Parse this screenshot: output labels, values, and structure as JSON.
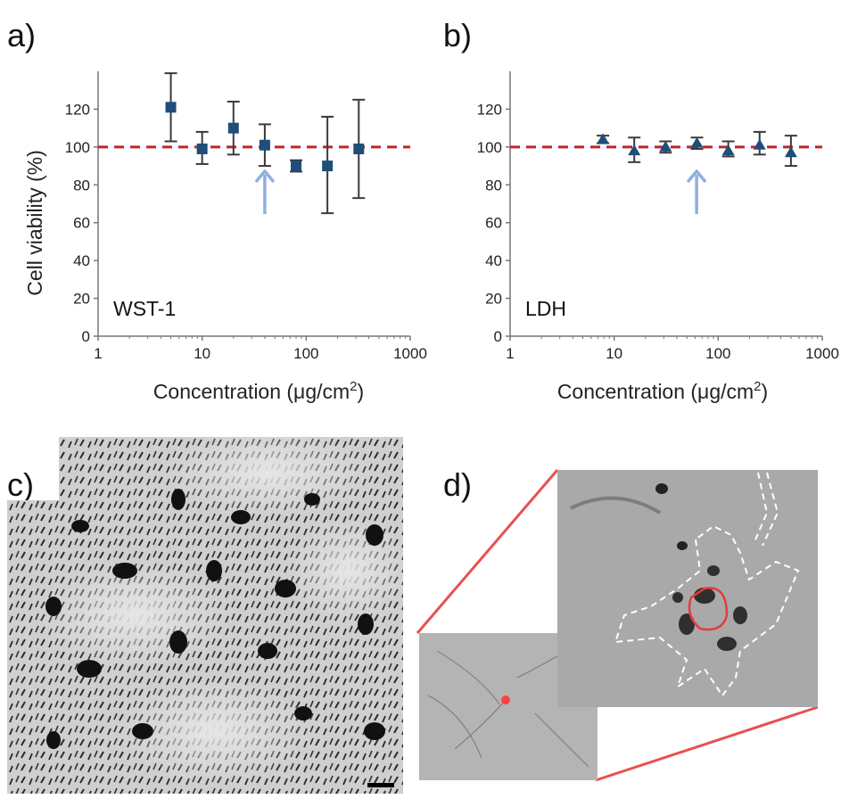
{
  "panels": {
    "a": {
      "label": "a)"
    },
    "b": {
      "label": "b)"
    },
    "c": {
      "label": "c)"
    },
    "d": {
      "label": "d)"
    }
  },
  "colors": {
    "reference_line": "#c0242c",
    "marker": "#1f4e79",
    "error_bar": "#3a3a3a",
    "arrow": "#8fb0e0",
    "zoom_lines": "#e85050",
    "nucleus_outline": "#e83a3a",
    "cell_outline": "#ffffff"
  },
  "chart_data": [
    {
      "type": "scatter",
      "panel": "a",
      "annotation": "WST-1",
      "marker": "square",
      "ylabel": "Cell viability (%)",
      "xlabel_text": "Concentration (μg/cm",
      "xlabel_sup": "2",
      "xlabel_close": ")",
      "xscale": "log",
      "xlim": [
        1,
        1000
      ],
      "ylim": [
        0,
        140
      ],
      "xticks": [
        "1",
        "10",
        "100",
        "1000"
      ],
      "xtick_values": [
        1,
        10,
        100,
        1000
      ],
      "yticks": [
        "0",
        "20",
        "40",
        "60",
        "80",
        "100",
        "120"
      ],
      "ytick_values": [
        0,
        20,
        40,
        60,
        80,
        100,
        120
      ],
      "reference_line_y": 100,
      "arrow_x": 40,
      "grid": false,
      "points": [
        {
          "x": 5,
          "y": 121,
          "err_low": 103,
          "err_high": 139
        },
        {
          "x": 10,
          "y": 99,
          "err_low": 91,
          "err_high": 108
        },
        {
          "x": 20,
          "y": 110,
          "err_low": 96,
          "err_high": 124
        },
        {
          "x": 40,
          "y": 101,
          "err_low": 90,
          "err_high": 112
        },
        {
          "x": 80,
          "y": 90,
          "err_low": 87,
          "err_high": 93
        },
        {
          "x": 160,
          "y": 90,
          "err_low": 65,
          "err_high": 116
        },
        {
          "x": 320,
          "y": 99,
          "err_low": 73,
          "err_high": 125
        }
      ]
    },
    {
      "type": "scatter",
      "panel": "b",
      "annotation": "LDH",
      "marker": "triangle",
      "ylabel": "",
      "xlabel_text": "Concentration (μg/cm",
      "xlabel_sup": "2",
      "xlabel_close": ")",
      "xscale": "log",
      "xlim": [
        1,
        1000
      ],
      "ylim": [
        0,
        140
      ],
      "xticks": [
        "1",
        "10",
        "100",
        "1000"
      ],
      "xtick_values": [
        1,
        10,
        100,
        1000
      ],
      "yticks": [
        "0",
        "20",
        "40",
        "60",
        "80",
        "100",
        "120"
      ],
      "ytick_values": [
        0,
        20,
        40,
        60,
        80,
        100,
        120
      ],
      "reference_line_y": 100,
      "arrow_x": 62,
      "grid": false,
      "points": [
        {
          "x": 7.8,
          "y": 104,
          "err_low": 102,
          "err_high": 106
        },
        {
          "x": 15.6,
          "y": 98,
          "err_low": 92,
          "err_high": 105
        },
        {
          "x": 31.2,
          "y": 100,
          "err_low": 97,
          "err_high": 103
        },
        {
          "x": 62.5,
          "y": 102,
          "err_low": 99,
          "err_high": 105
        },
        {
          "x": 125,
          "y": 98,
          "err_low": 95,
          "err_high": 103
        },
        {
          "x": 250,
          "y": 101,
          "err_low": 96,
          "err_high": 108
        },
        {
          "x": 500,
          "y": 97,
          "err_low": 90,
          "err_high": 106
        }
      ]
    }
  ]
}
